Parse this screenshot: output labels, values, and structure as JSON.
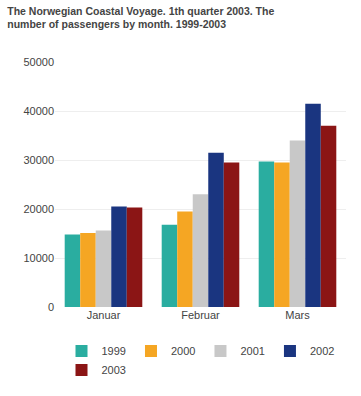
{
  "chart_data": {
    "type": "bar",
    "title": "The Norwegian Coastal Voyage. 1th quarter 2003. The\nnumber of passengers by month. 1999-2003",
    "categories": [
      "Januar",
      "Februar",
      "Mars"
    ],
    "series": [
      {
        "name": "1999",
        "color": "#2aada0",
        "values": [
          14800,
          16800,
          29700
        ]
      },
      {
        "name": "2000",
        "color": "#f5a623",
        "values": [
          15100,
          19500,
          29500
        ]
      },
      {
        "name": "2001",
        "color": "#c8c8c8",
        "values": [
          15600,
          23000,
          34000
        ]
      },
      {
        "name": "2002",
        "color": "#1a3580",
        "values": [
          20500,
          31500,
          41500
        ]
      },
      {
        "name": "2003",
        "color": "#8b1515",
        "values": [
          20300,
          29500,
          37000
        ]
      }
    ],
    "ylim": [
      0,
      50000
    ],
    "yticks": [
      0,
      10000,
      20000,
      30000,
      40000,
      50000
    ],
    "grid": true,
    "legend": "bottom"
  }
}
